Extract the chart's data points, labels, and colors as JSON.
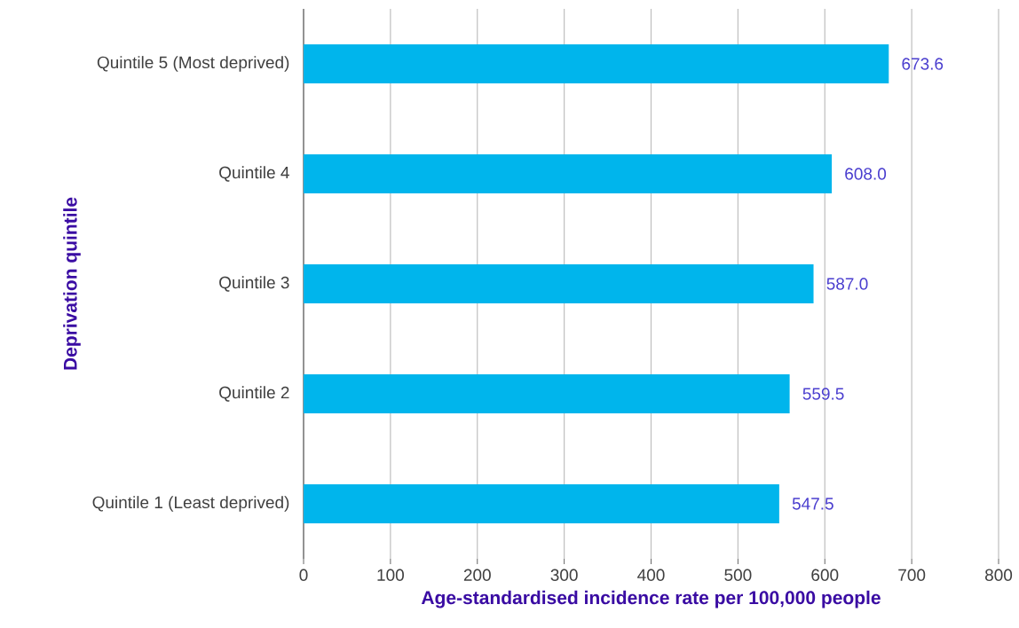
{
  "chart_data": {
    "type": "bar",
    "orientation": "horizontal",
    "xlabel": "Age-standardised incidence rate per 100,000 people",
    "ylabel": "Deprivation quintile",
    "categories": [
      "Quintile 5 (Most deprived)",
      "Quintile 4",
      "Quintile 3",
      "Quintile 2",
      "Quintile 1 (Least deprived)"
    ],
    "values": [
      673.6,
      608.0,
      587.0,
      559.5,
      547.5
    ],
    "value_labels": [
      "673.6",
      "608.0",
      "587.0",
      "559.5",
      "547.5"
    ],
    "color": "#00b5ec",
    "xlim": [
      0,
      800
    ],
    "xticks": [
      0,
      100,
      200,
      300,
      400,
      500,
      600,
      700,
      800
    ],
    "grid": "x"
  }
}
